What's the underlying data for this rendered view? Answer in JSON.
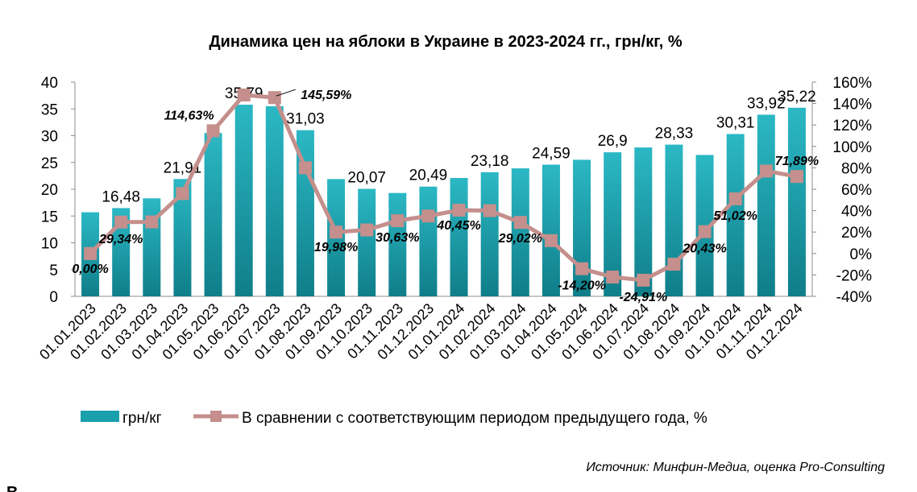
{
  "chart_data": {
    "type": "bar+line",
    "title": "Динамика цен на яблоки в Украине в 2023-2024 гг., грн/кг, %",
    "categories": [
      "01.01.2023",
      "01.02.2023",
      "01.03.2023",
      "01.04.2023",
      "01.05.2023",
      "01.06.2023",
      "01.07.2023",
      "01.08.2023",
      "01.09.2023",
      "01.10.2023",
      "01.11.2023",
      "01.12.2023",
      "01.01.2024",
      "01.02.2024",
      "01.03.2024",
      "01.04.2024",
      "01.05.2024",
      "01.06.2024",
      "01.07.2024",
      "01.08.2024",
      "01.09.2024",
      "01.10.2024",
      "01.11.2024",
      "01.12.2024"
    ],
    "series": [
      {
        "name": "грн/кг",
        "type": "bar",
        "axis": "left",
        "color": "#1aa0ad",
        "values": [
          15.7,
          16.48,
          18.3,
          21.91,
          30.5,
          35.79,
          35.5,
          31.03,
          21.9,
          20.07,
          19.3,
          20.49,
          22.1,
          23.18,
          23.9,
          24.59,
          25.5,
          26.9,
          27.8,
          28.33,
          26.4,
          30.31,
          33.92,
          35.22
        ],
        "labels": [
          "",
          "16,48",
          "",
          "21,91",
          "",
          "35,79",
          "",
          "31,03",
          "",
          "20,07",
          "",
          "20,49",
          "",
          "23,18",
          "",
          "24,59",
          "",
          "26,9",
          "",
          "28,33",
          "",
          "30,31",
          "33,92",
          "35,22"
        ]
      },
      {
        "name": "В сравнении с соответствующим периодом предыдущего года, %",
        "type": "line",
        "axis": "right",
        "color": "#c48f8c",
        "values": [
          0.0,
          29.34,
          29.5,
          56.0,
          114.63,
          148.0,
          145.59,
          80.0,
          19.98,
          22.0,
          30.63,
          35.0,
          40.45,
          40.0,
          29.02,
          12.0,
          -14.2,
          -22.0,
          -24.91,
          -10.0,
          20.43,
          51.02,
          77.0,
          71.89
        ],
        "labels": [
          "0,00%",
          "29,34%",
          "",
          "",
          "114,63%",
          "",
          "145,59%",
          "",
          "19,98%",
          "",
          "30,63%",
          "",
          "40,45%",
          "",
          "29,02%",
          "",
          "-14,20%",
          "",
          "-24,91%",
          "",
          "20,43%",
          "51,02%",
          "",
          "71,89%"
        ]
      }
    ],
    "y_left": {
      "ylim": [
        0,
        40
      ],
      "ticks": [
        "0",
        "5",
        "10",
        "15",
        "20",
        "25",
        "30",
        "35",
        "40"
      ]
    },
    "y_right": {
      "ylim": [
        -40,
        160
      ],
      "ticks": [
        "-40%",
        "-20%",
        "0%",
        "20%",
        "40%",
        "60%",
        "80%",
        "100%",
        "120%",
        "140%",
        "160%"
      ]
    },
    "legend": [
      "грн/кг",
      "В сравнении с соответствующим периодом предыдущего года, %"
    ],
    "legend_position": "bottom",
    "grid": false
  },
  "source": "Источник: Минфин-Медиа, оценка Pro-Consulting",
  "following_text_fragment": "В"
}
